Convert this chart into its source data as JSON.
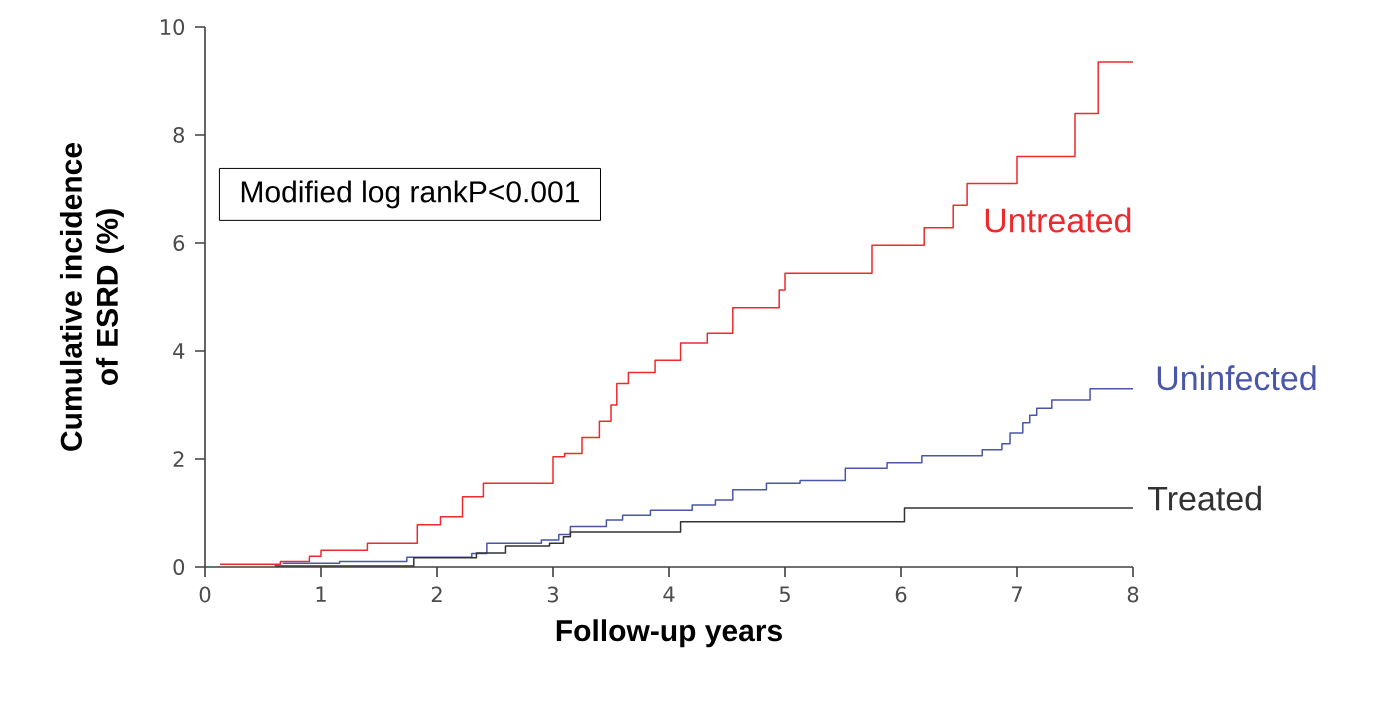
{
  "chart_data": {
    "type": "step",
    "xlabel": "Follow-up years",
    "ylabel": "Cumulative incidence of ESRD (%)",
    "xlim": [
      0,
      8
    ],
    "ylim": [
      0,
      10
    ],
    "xticks": [
      0,
      1,
      2,
      3,
      4,
      5,
      6,
      7,
      8
    ],
    "yticks": [
      0,
      2,
      4,
      6,
      8,
      10
    ],
    "grid": false,
    "legend": false,
    "marker": "none",
    "line_style": "solid",
    "annotations": [
      "Modified log rankP<0.001"
    ],
    "series": [
      {
        "name": "Untreated",
        "color": "#ee2a2e",
        "x": [
          0.13,
          0.65,
          0.9,
          1.0,
          1.4,
          1.83,
          2.03,
          2.22,
          2.4,
          3.0,
          3.1,
          3.25,
          3.4,
          3.5,
          3.55,
          3.65,
          3.88,
          4.1,
          4.33,
          4.55,
          4.95,
          5.0,
          5.75,
          6.2,
          6.45,
          6.57,
          7.0,
          7.5,
          7.7,
          8.0
        ],
        "values": [
          0.05,
          0.1,
          0.2,
          0.31,
          0.44,
          0.78,
          0.93,
          1.3,
          1.55,
          2.04,
          2.1,
          2.4,
          2.7,
          3.0,
          3.4,
          3.6,
          3.83,
          4.15,
          4.33,
          4.8,
          5.13,
          5.44,
          5.96,
          6.28,
          6.7,
          7.1,
          7.6,
          8.4,
          9.35,
          9.35
        ]
      },
      {
        "name": "Uninfected",
        "color": "#4a56a8",
        "x": [
          0.67,
          1.16,
          1.74,
          2.3,
          2.43,
          2.9,
          3.05,
          3.15,
          3.46,
          3.6,
          3.84,
          4.2,
          4.4,
          4.55,
          4.84,
          5.13,
          5.52,
          5.88,
          6.18,
          6.7,
          6.87,
          6.94,
          7.05,
          7.11,
          7.17,
          7.3,
          7.63,
          8.0
        ],
        "values": [
          0.07,
          0.1,
          0.18,
          0.25,
          0.44,
          0.5,
          0.6,
          0.75,
          0.87,
          0.96,
          1.05,
          1.15,
          1.24,
          1.43,
          1.55,
          1.6,
          1.83,
          1.93,
          2.06,
          2.17,
          2.28,
          2.48,
          2.67,
          2.81,
          2.94,
          3.09,
          3.3,
          3.3
        ]
      },
      {
        "name": "Treated",
        "color": "#333333",
        "x": [
          0.6,
          1.8,
          2.34,
          2.59,
          2.97,
          3.09,
          3.15,
          4.1,
          6.03,
          8.0
        ],
        "values": [
          0.02,
          0.17,
          0.26,
          0.39,
          0.44,
          0.56,
          0.65,
          0.84,
          1.09,
          1.09
        ]
      }
    ]
  }
}
